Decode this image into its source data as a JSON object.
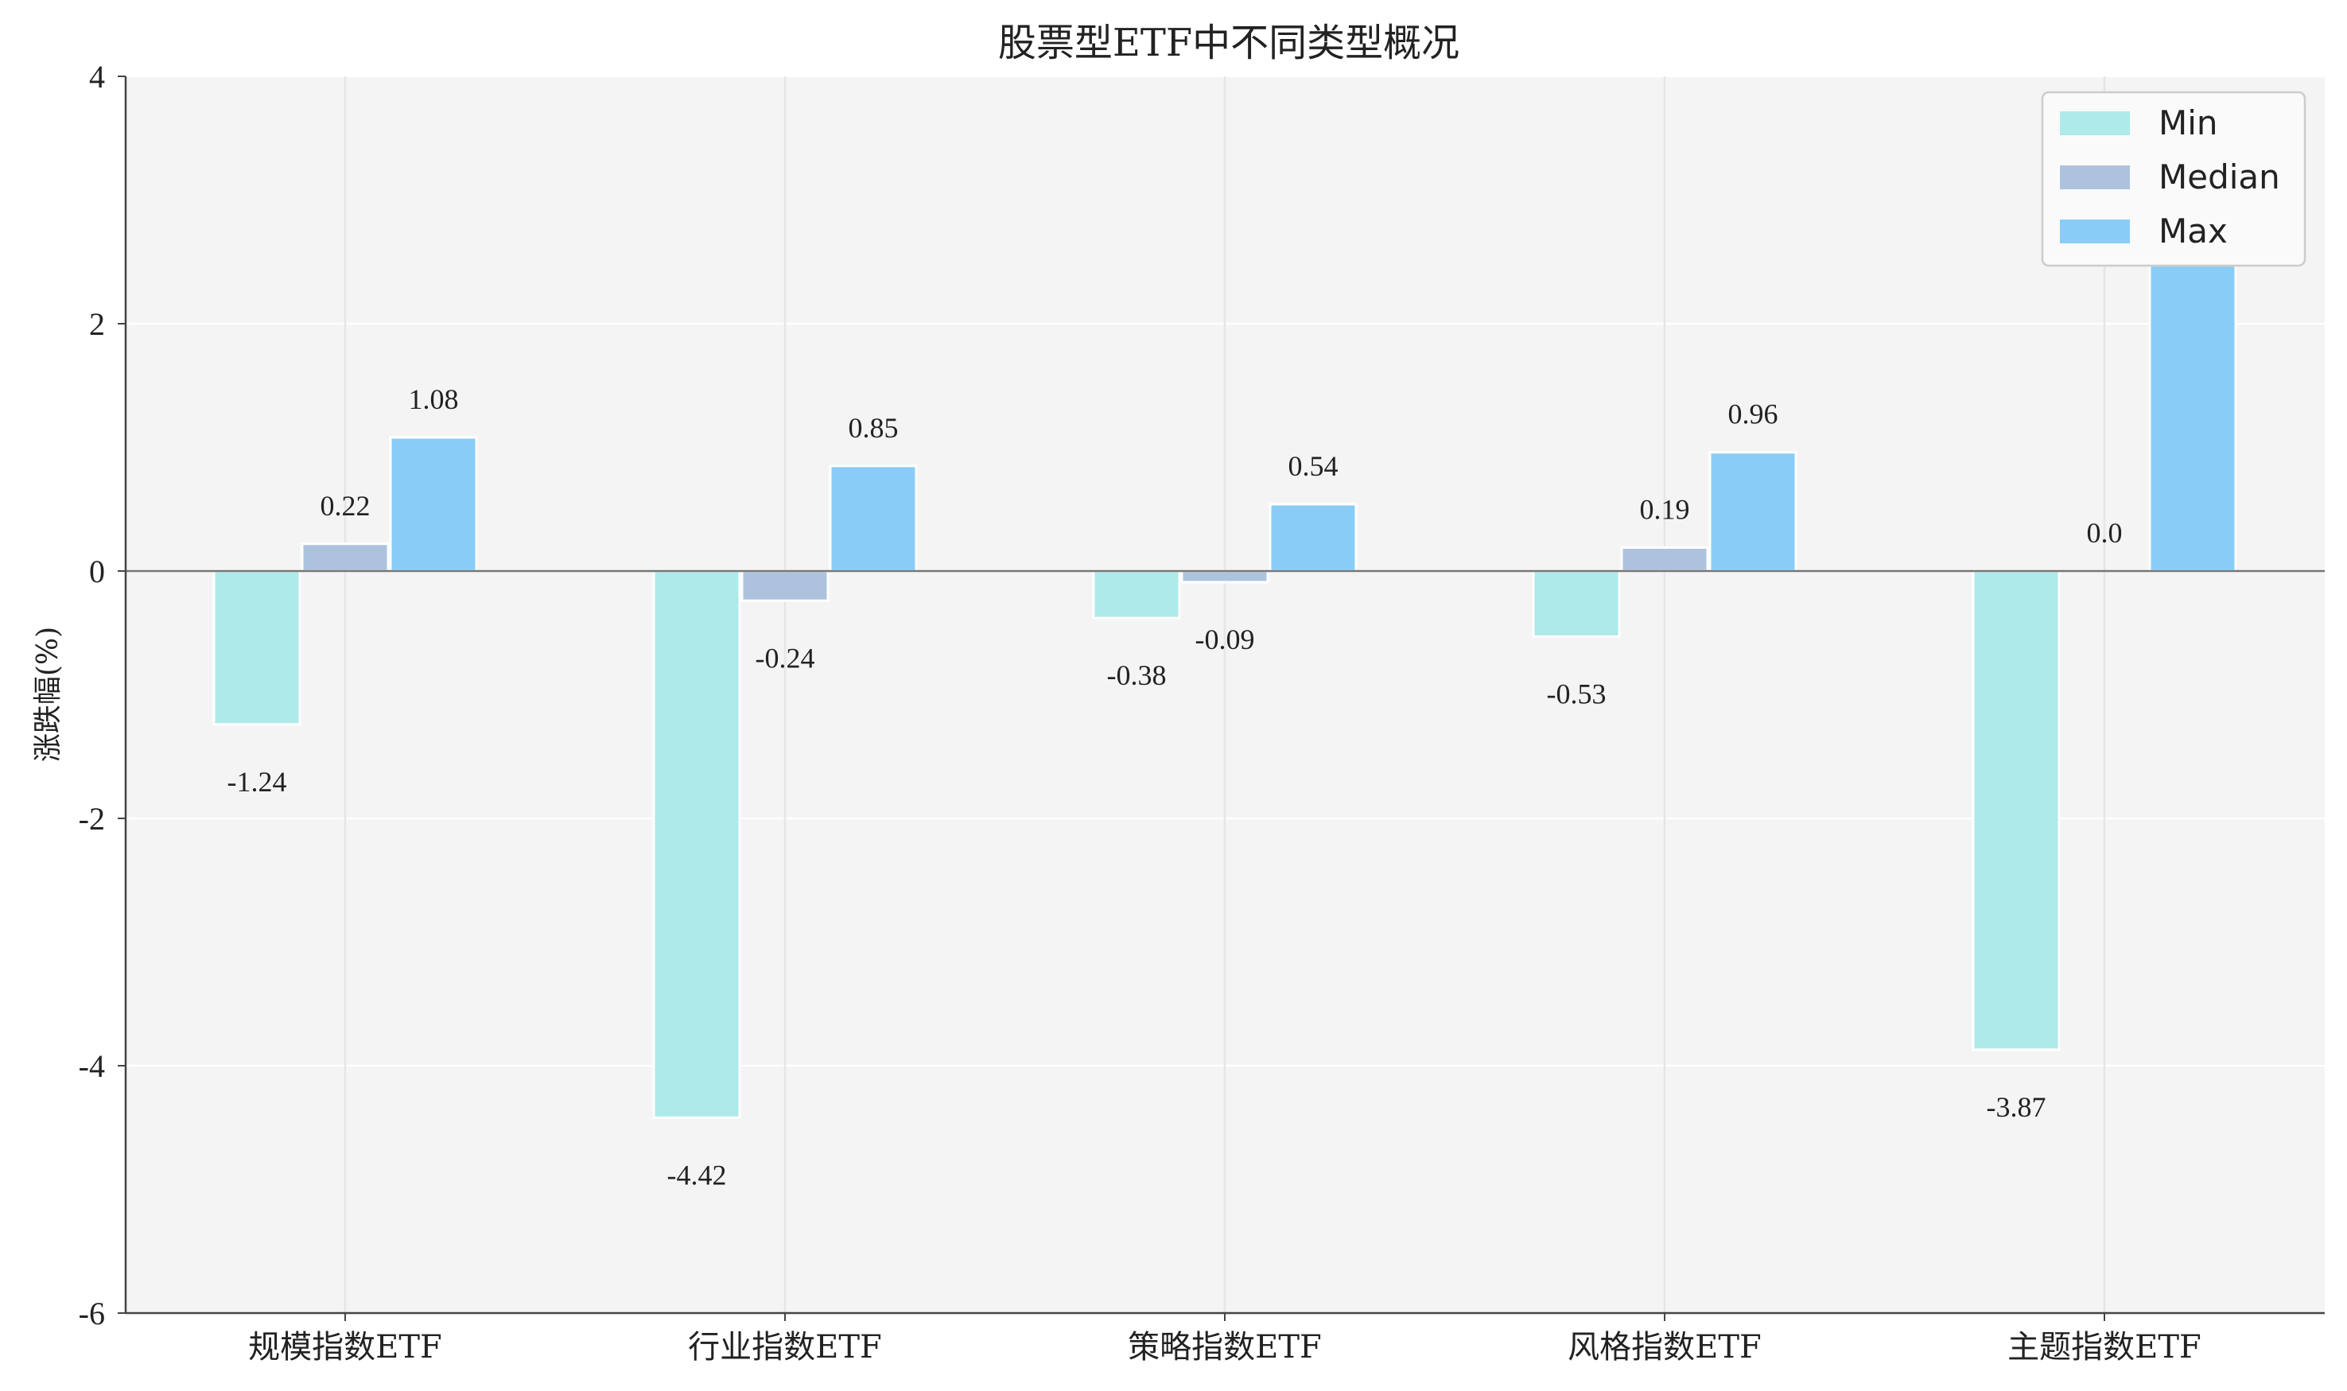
{
  "chart_data": {
    "type": "bar",
    "title": "股票型ETF中不同类型概况",
    "xlabel": "",
    "ylabel": "涨跌幅(%)",
    "ylim": [
      -6,
      4
    ],
    "yticks": [
      4,
      2,
      0,
      -2,
      -4,
      -6
    ],
    "categories": [
      "规模指数ETF",
      "行业指数ETF",
      "策略指数ETF",
      "风格指数ETF",
      "主题指数ETF"
    ],
    "series": [
      {
        "name": "Min",
        "color": "#aeeaea",
        "values": [
          -1.24,
          -4.42,
          -0.38,
          -0.53,
          -3.87
        ]
      },
      {
        "name": "Median",
        "color": "#adc3dd",
        "values": [
          0.22,
          -0.24,
          -0.09,
          0.19,
          0.0
        ]
      },
      {
        "name": "Max",
        "color": "#89cdf7",
        "values": [
          1.08,
          0.85,
          0.54,
          0.96,
          2.7
        ]
      }
    ],
    "data_labels": [
      [
        "-1.24",
        "-4.42",
        "-0.38",
        "-0.53",
        "-3.87"
      ],
      [
        "0.22",
        "-0.24",
        "-0.09",
        "0.19",
        "0.0"
      ],
      [
        "1.08",
        "0.85",
        "0.54",
        "0.96",
        "2.70"
      ]
    ],
    "grid": true,
    "legend": "top-right"
  }
}
